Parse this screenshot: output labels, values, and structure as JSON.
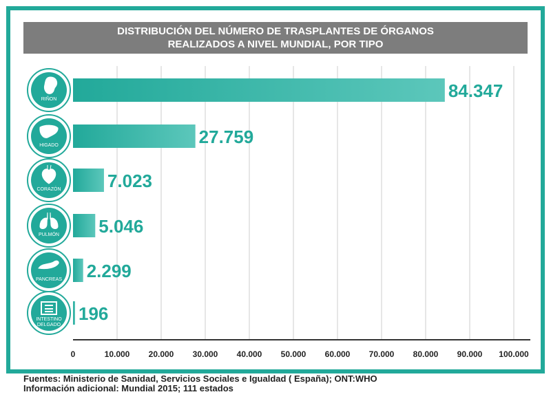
{
  "title_line1": "DISTRIBUCIÓN DEL NÚMERO DE TRASPLANTES DE ÓRGANOS",
  "title_line2": "REALIZADOS A NIVEL MUNDIAL, POR TIPO",
  "footer_line1": "Fuentes: Ministerio de Sanidad, Servicios Sociales e Igualdad ( España); ONT:WHO",
  "footer_line2": "Información adicional: Mundial 2015; 111 estados",
  "colors": {
    "accent": "#22a99a",
    "bar_light": "#5cc7bb",
    "title_bg": "#7d7d7d",
    "grid": "#cccccc"
  },
  "chart_data": {
    "type": "bar",
    "orientation": "horizontal",
    "categories": [
      {
        "label": "RIÑON",
        "icon": "kidney-icon"
      },
      {
        "label": "HIGADO",
        "icon": "liver-icon"
      },
      {
        "label": "CORAZÓN",
        "icon": "heart-icon"
      },
      {
        "label": "PULMÓN",
        "icon": "lung-icon"
      },
      {
        "label": "PANCREAS",
        "icon": "pancreas-icon"
      },
      {
        "label": "INTESTINO DELGADO",
        "icon": "intestine-icon"
      }
    ],
    "values": [
      84347,
      27759,
      7023,
      5046,
      2299,
      196
    ],
    "value_labels": [
      "84.347",
      "27.759",
      "7.023",
      "5.046",
      "2.299",
      "196"
    ],
    "xlim": [
      0,
      100000
    ],
    "xticks": [
      "0",
      "10.000",
      "20.000",
      "30.000",
      "40.000",
      "50.000",
      "60.000",
      "70.000",
      "80.000",
      "90.000",
      "100.000"
    ],
    "grid": true
  }
}
